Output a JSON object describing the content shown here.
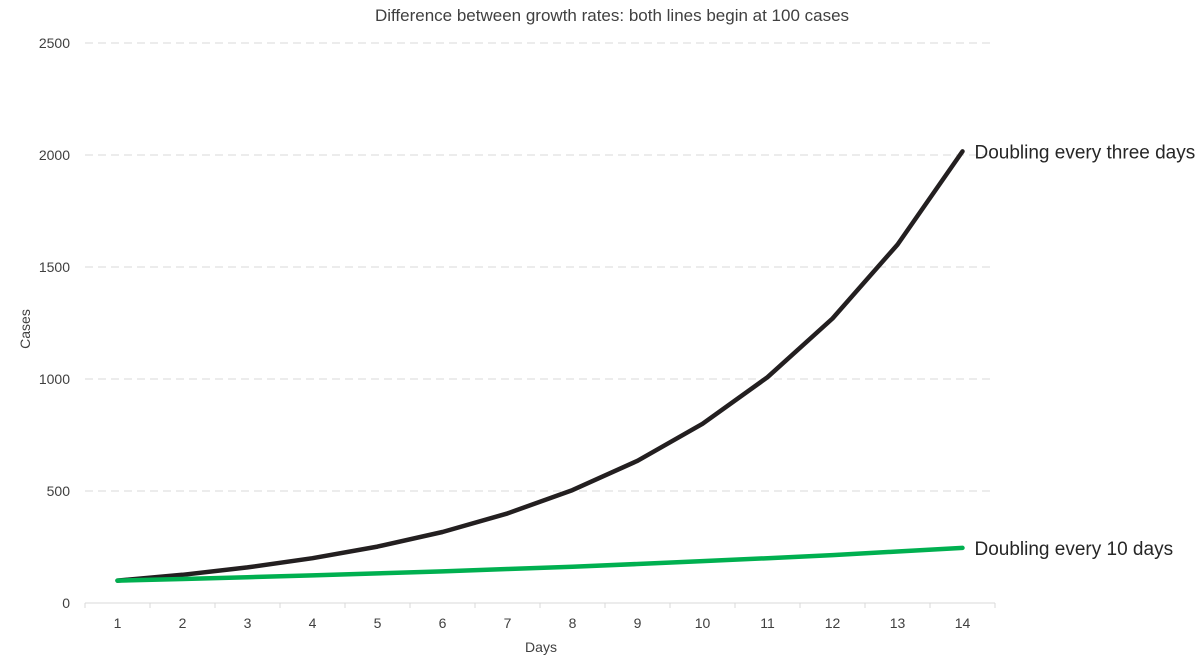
{
  "chart_data": {
    "type": "line",
    "title": "Difference between growth rates: both lines begin at 100 cases",
    "xlabel": "Days",
    "ylabel": "Cases",
    "categories": [
      "1",
      "2",
      "3",
      "4",
      "5",
      "6",
      "7",
      "8",
      "9",
      "10",
      "11",
      "12",
      "13",
      "14"
    ],
    "x": [
      1,
      2,
      3,
      4,
      5,
      6,
      7,
      8,
      9,
      10,
      11,
      12,
      13,
      14
    ],
    "ylim": [
      0,
      2500
    ],
    "yticks": [
      0,
      500,
      1000,
      1500,
      2000,
      2500
    ],
    "grid": true,
    "legend": "end-of-line labels",
    "series": [
      {
        "name": "Doubling every three days",
        "color": "#231f20",
        "values": [
          100,
          126,
          159,
          200,
          252,
          317,
          400,
          504,
          635,
          800,
          1008,
          1270,
          1600,
          2016
        ]
      },
      {
        "name": "Doubling every 10 days",
        "color": "#00b050",
        "values": [
          100,
          107,
          115,
          123,
          132,
          141,
          152,
          162,
          174,
          187,
          200,
          214,
          230,
          246
        ]
      }
    ]
  }
}
